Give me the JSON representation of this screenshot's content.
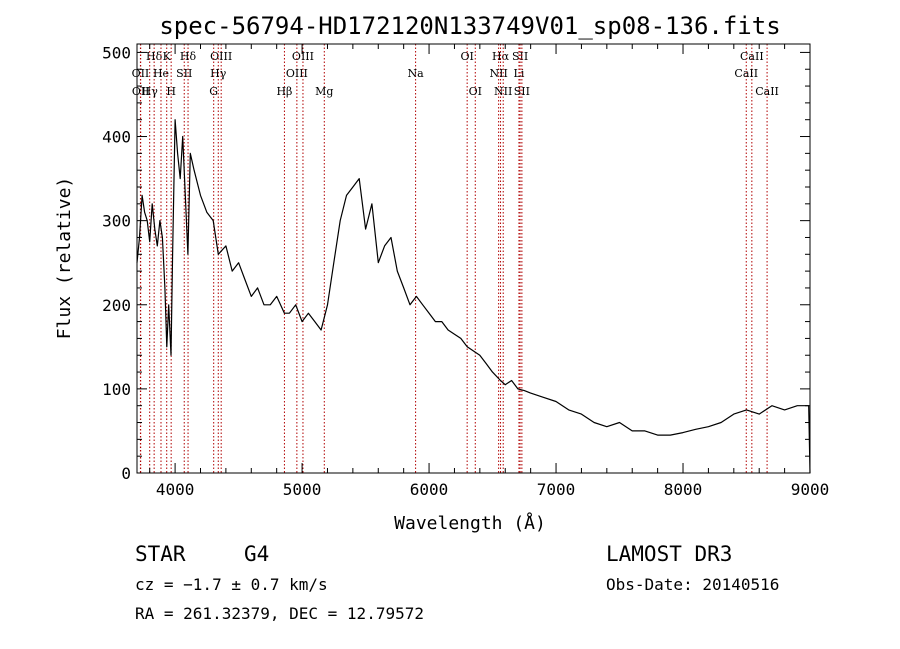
{
  "chart_data": {
    "type": "line",
    "title": "spec-56794-HD172120N133749V01_sp08-136.fits",
    "xlabel": "Wavelength (Å)",
    "ylabel": "Flux (relative)",
    "xlim": [
      3700,
      9000
    ],
    "ylim": [
      0,
      510
    ],
    "xticks": [
      {
        "value": 4000,
        "label": "4000"
      },
      {
        "value": 5000,
        "label": "5000"
      },
      {
        "value": 6000,
        "label": "6000"
      },
      {
        "value": 7000,
        "label": "7000"
      },
      {
        "value": 8000,
        "label": "8000"
      },
      {
        "value": 9000,
        "label": "9000"
      }
    ],
    "yticks": [
      {
        "value": 0,
        "label": "0"
      },
      {
        "value": 100,
        "label": "100"
      },
      {
        "value": 200,
        "label": "200"
      },
      {
        "value": 300,
        "label": "300"
      },
      {
        "value": 400,
        "label": "400"
      },
      {
        "value": 500,
        "label": "500"
      }
    ],
    "series": [
      {
        "name": "flux",
        "x": [
          3700,
          3720,
          3740,
          3760,
          3780,
          3800,
          3820,
          3840,
          3860,
          3880,
          3900,
          3920,
          3935,
          3950,
          3968,
          3980,
          4000,
          4020,
          4040,
          4060,
          4080,
          4101,
          4120,
          4150,
          4200,
          4250,
          4300,
          4340,
          4400,
          4450,
          4500,
          4550,
          4600,
          4650,
          4700,
          4750,
          4800,
          4861,
          4900,
          4950,
          5000,
          5050,
          5100,
          5150,
          5200,
          5250,
          5300,
          5350,
          5400,
          5450,
          5500,
          5550,
          5600,
          5650,
          5700,
          5750,
          5800,
          5850,
          5900,
          5950,
          6000,
          6050,
          6100,
          6150,
          6200,
          6250,
          6300,
          6350,
          6400,
          6450,
          6500,
          6563,
          6600,
          6650,
          6700,
          6750,
          6800,
          6900,
          7000,
          7100,
          7200,
          7300,
          7400,
          7500,
          7600,
          7700,
          7800,
          7900,
          8000,
          8100,
          8200,
          8300,
          8400,
          8500,
          8600,
          8700,
          8800,
          8900,
          8990,
          9000
        ],
        "y": [
          250,
          280,
          330,
          310,
          300,
          275,
          320,
          290,
          270,
          300,
          280,
          220,
          150,
          200,
          140,
          260,
          420,
          380,
          350,
          400,
          330,
          260,
          380,
          360,
          330,
          310,
          300,
          260,
          270,
          240,
          250,
          230,
          210,
          220,
          200,
          200,
          210,
          190,
          190,
          200,
          180,
          190,
          180,
          170,
          200,
          250,
          300,
          330,
          340,
          350,
          290,
          320,
          250,
          270,
          280,
          240,
          220,
          200,
          210,
          200,
          190,
          180,
          180,
          170,
          165,
          160,
          150,
          145,
          140,
          130,
          120,
          110,
          105,
          110,
          100,
          98,
          95,
          90,
          85,
          75,
          70,
          60,
          55,
          60,
          50,
          50,
          45,
          45,
          48,
          52,
          55,
          60,
          70,
          75,
          70,
          80,
          75,
          80,
          80,
          0
        ]
      }
    ],
    "lines": [
      {
        "name": "Hδ",
        "wavelength": 3835,
        "row": 1
      },
      {
        "name": "OII",
        "wavelength": 3727,
        "row": 2
      },
      {
        "name": "OII",
        "wavelength": 3729,
        "row": 3
      },
      {
        "name": "He",
        "wavelength": 3889,
        "row": 2
      },
      {
        "name": "Hγ",
        "wavelength": 3800,
        "row": 3
      },
      {
        "name": "K",
        "wavelength": 3934,
        "row": 1
      },
      {
        "name": "H",
        "wavelength": 3969,
        "row": 3
      },
      {
        "name": "SII",
        "wavelength": 4072,
        "row": 2
      },
      {
        "name": "Hδ",
        "wavelength": 4102,
        "row": 1
      },
      {
        "name": "OIII",
        "wavelength": 4363,
        "row": 1
      },
      {
        "name": "Hγ",
        "wavelength": 4340,
        "row": 2
      },
      {
        "name": "G",
        "wavelength": 4304,
        "row": 3
      },
      {
        "name": "Hβ",
        "wavelength": 4861,
        "row": 3
      },
      {
        "name": "OIII",
        "wavelength": 4959,
        "row": 2
      },
      {
        "name": "OIII",
        "wavelength": 5007,
        "row": 1
      },
      {
        "name": "Mg",
        "wavelength": 5175,
        "row": 3
      },
      {
        "name": "Na",
        "wavelength": 5894,
        "row": 2
      },
      {
        "name": "OI",
        "wavelength": 6300,
        "row": 1
      },
      {
        "name": "OI",
        "wavelength": 6364,
        "row": 3
      },
      {
        "name": "Hα",
        "wavelength": 6563,
        "row": 1
      },
      {
        "name": "NII",
        "wavelength": 6548,
        "row": 2
      },
      {
        "name": "NII",
        "wavelength": 6584,
        "row": 3
      },
      {
        "name": "SII",
        "wavelength": 6717,
        "row": 1
      },
      {
        "name": "Li",
        "wavelength": 6708,
        "row": 2
      },
      {
        "name": "SII",
        "wavelength": 6731,
        "row": 3
      },
      {
        "name": "CaII",
        "wavelength": 8542,
        "row": 1
      },
      {
        "name": "CaII",
        "wavelength": 8498,
        "row": 2
      },
      {
        "name": "CaII",
        "wavelength": 8662,
        "row": 3
      }
    ]
  },
  "info": {
    "class": "STAR",
    "subclass": "G4",
    "survey": "LAMOST DR3",
    "cz": "cz = −1.7 ± 0.7 km/s",
    "obs_date": "Obs-Date: 20140516",
    "radec": "RA = 261.32379, DEC =  12.79572"
  }
}
